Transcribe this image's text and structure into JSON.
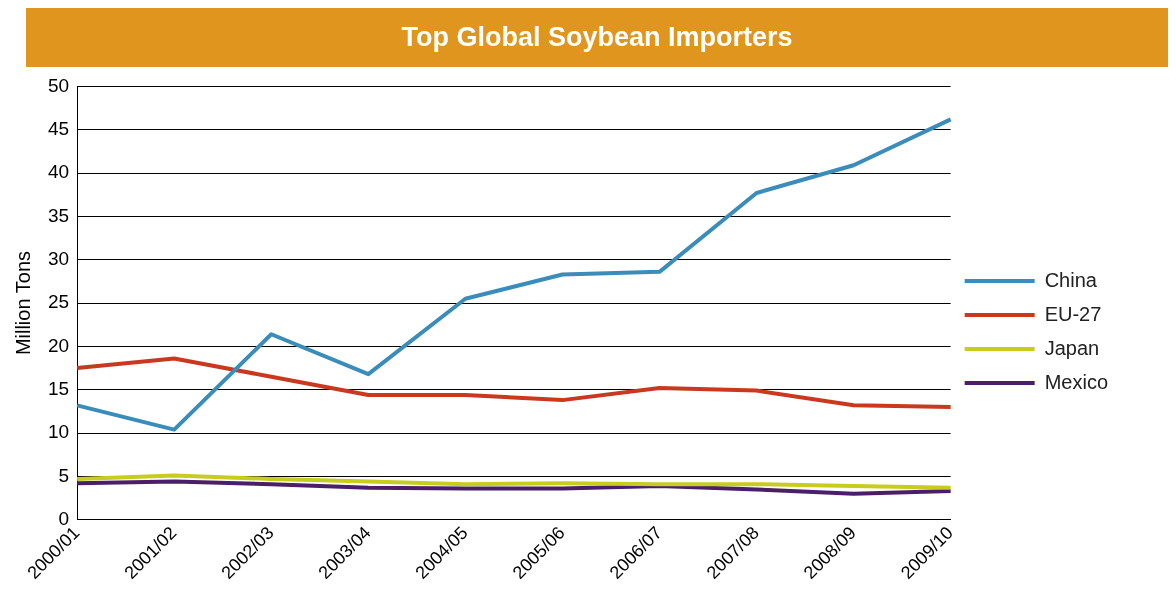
{
  "chart_data": {
    "type": "line",
    "title": "Top Global Soybean Importers",
    "ylabel": "Million Tons",
    "categories": [
      "2000/01",
      "2001/02",
      "2002/03",
      "2003/04",
      "2004/05",
      "2005/06",
      "2006/07",
      "2007/08",
      "2008/09",
      "2009/10"
    ],
    "series": [
      {
        "name": "China",
        "color": "#3a8dbb",
        "values": [
          13.2,
          10.4,
          21.4,
          16.8,
          25.5,
          28.3,
          28.6,
          37.7,
          40.9,
          46.2
        ]
      },
      {
        "name": "EU-27",
        "color": "#c9381f",
        "values": [
          17.5,
          18.6,
          16.5,
          14.4,
          14.4,
          13.8,
          15.2,
          14.9,
          13.2,
          13.0
        ]
      },
      {
        "name": "Japan",
        "color": "#c8cc1e",
        "values": [
          4.7,
          5.1,
          4.7,
          4.4,
          4.1,
          4.2,
          4.1,
          4.1,
          3.9,
          3.7
        ]
      },
      {
        "name": "Mexico",
        "color": "#4a1e6b",
        "values": [
          4.2,
          4.4,
          4.1,
          3.7,
          3.6,
          3.6,
          3.9,
          3.5,
          3.0,
          3.3
        ]
      }
    ],
    "ylim": [
      0,
      50
    ],
    "yticks": [
      0,
      5,
      10,
      15,
      20,
      25,
      30,
      35,
      40,
      45,
      50
    ],
    "grid": "y",
    "legend": "right",
    "marker": "none",
    "line_style": "solid"
  }
}
